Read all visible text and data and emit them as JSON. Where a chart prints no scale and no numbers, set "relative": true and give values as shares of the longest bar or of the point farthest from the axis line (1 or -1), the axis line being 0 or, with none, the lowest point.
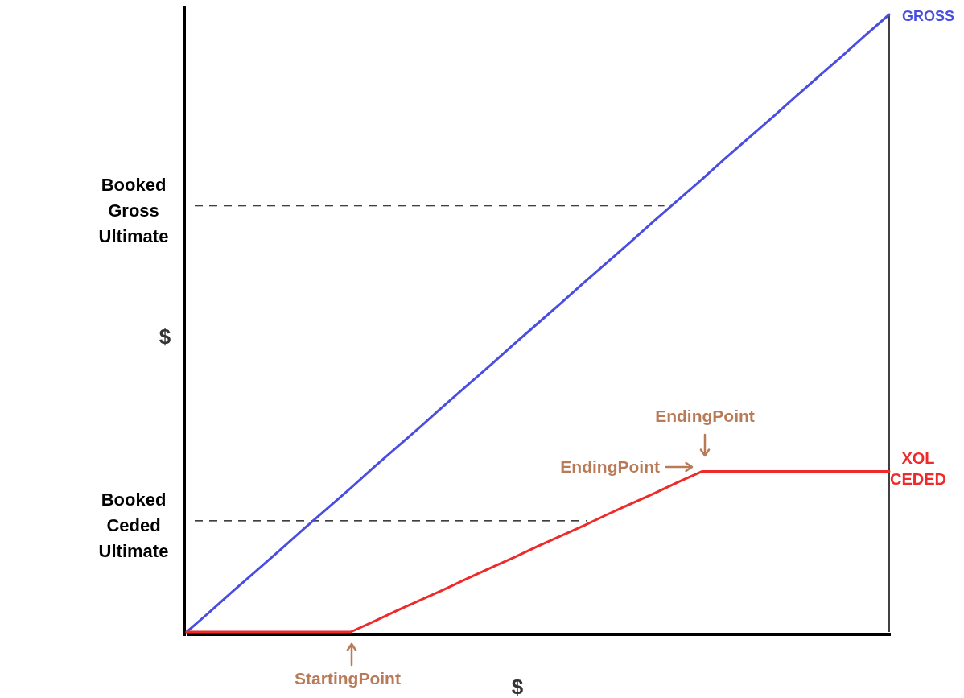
{
  "chart_data": {
    "type": "line",
    "relative": true,
    "xlabel": "$",
    "ylabel": "$",
    "categories": [
      null,
      null,
      null,
      null,
      null,
      null,
      null,
      null,
      null,
      null,
      null,
      null,
      null,
      null,
      null,
      null,
      null,
      null,
      null,
      null,
      null,
      null,
      null,
      null,
      null,
      null,
      null,
      null,
      null,
      null,
      null
    ],
    "series": [
      {
        "name": "GROSS",
        "color": "#4a4ee0",
        "values": [
          0,
          0.033,
          0.067,
          0.1,
          0.133,
          0.167,
          0.2,
          0.233,
          0.267,
          0.3,
          0.333,
          0.367,
          0.4,
          0.433,
          0.467,
          0.5,
          0.533,
          0.567,
          0.6,
          0.633,
          0.667,
          0.7,
          0.733,
          0.767,
          0.8,
          0.833,
          0.867,
          0.9,
          0.933,
          0.967,
          1
        ]
      },
      {
        "name": "XOL CEDED",
        "color": "#ee2a2a",
        "values": [
          0,
          0,
          0,
          0,
          0,
          0,
          0,
          0,
          0.017,
          0.035,
          0.052,
          0.069,
          0.087,
          0.104,
          0.121,
          0.139,
          0.156,
          0.173,
          0.191,
          0.208,
          0.225,
          0.243,
          0.26,
          0.26,
          0.26,
          0.26,
          0.26,
          0.26,
          0.26,
          0.26,
          0.26
        ]
      }
    ],
    "ref_lines": [
      {
        "axis": "y",
        "value": 0.69,
        "label": "Booked Gross Ultimate",
        "color": "#000000",
        "line_style": "dashed"
      },
      {
        "axis": "y",
        "value": 0.18,
        "label": "Booked Ceded Ultimate",
        "color": "#000000",
        "line_style": "dashed"
      }
    ],
    "annotations": [
      "StartingPoint",
      "EndingPoint",
      "EndingPoint"
    ]
  }
}
